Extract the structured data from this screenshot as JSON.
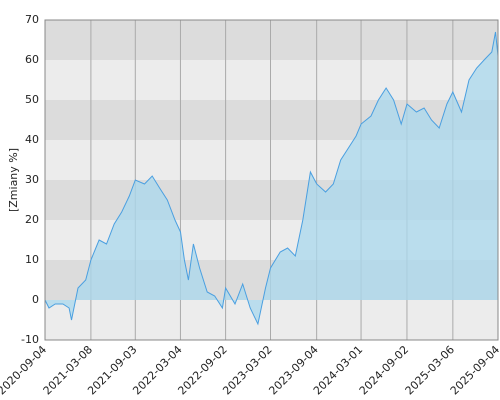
{
  "chart_data": {
    "type": "area",
    "y_label": "[Zmiany %]",
    "x": [
      "2020-09-04",
      "2020-09-20",
      "2020-10-15",
      "2020-11-15",
      "2020-12-10",
      "2020-12-20",
      "2021-01-15",
      "2021-02-15",
      "2021-03-08",
      "2021-04-10",
      "2021-05-10",
      "2021-06-10",
      "2021-07-10",
      "2021-08-10",
      "2021-09-03",
      "2021-10-10",
      "2021-11-10",
      "2021-12-10",
      "2022-01-10",
      "2022-02-10",
      "2022-03-04",
      "2022-03-20",
      "2022-04-05",
      "2022-04-25",
      "2022-05-20",
      "2022-06-20",
      "2022-07-20",
      "2022-08-20",
      "2022-09-02",
      "2022-10-10",
      "2022-11-10",
      "2022-12-10",
      "2023-01-10",
      "2023-02-10",
      "2023-03-02",
      "2023-04-10",
      "2023-05-10",
      "2023-06-10",
      "2023-07-10",
      "2023-08-10",
      "2023-09-04",
      "2023-10-10",
      "2023-11-10",
      "2023-12-10",
      "2024-01-10",
      "2024-02-10",
      "2024-03-01",
      "2024-04-10",
      "2024-05-10",
      "2024-06-10",
      "2024-07-10",
      "2024-08-10",
      "2024-09-02",
      "2024-10-10",
      "2024-11-10",
      "2024-12-10",
      "2025-01-10",
      "2025-02-10",
      "2025-03-06",
      "2025-04-10",
      "2025-05-10",
      "2025-06-10",
      "2025-07-10",
      "2025-08-10",
      "2025-08-25",
      "2025-09-04"
    ],
    "series": [
      {
        "color": "#4a9fe0",
        "fill": "#a9d8ee",
        "values": [
          0,
          -2,
          -1,
          -1,
          -2,
          -5,
          3,
          5,
          10,
          15,
          14,
          19,
          22,
          26,
          30,
          29,
          31,
          28,
          25,
          20,
          17,
          10,
          5,
          14,
          8,
          2,
          1,
          -2,
          3,
          -1,
          4,
          -2,
          -6,
          3,
          8,
          12,
          13,
          11,
          20,
          32,
          29,
          27,
          29,
          35,
          38,
          41,
          44,
          46,
          50,
          53,
          50,
          44,
          49,
          47,
          48,
          45,
          43,
          49,
          52,
          47,
          55,
          58,
          60,
          62,
          67,
          61
        ]
      }
    ],
    "xlim": [
      "2020-09-04",
      "2025-09-04"
    ],
    "xticks": [
      "2020-09-04",
      "2021-03-08",
      "2021-09-03",
      "2022-03-04",
      "2022-09-02",
      "2023-03-02",
      "2023-09-04",
      "2024-03-01",
      "2024-09-02",
      "2025-03-06",
      "2025-09-04"
    ],
    "ylim": [
      -10,
      70
    ],
    "yticks": [
      -10,
      0,
      10,
      20,
      30,
      40,
      50,
      60,
      70
    ],
    "band_colors": [
      "#ececec",
      "#dcdcdc"
    ],
    "grid": true
  }
}
